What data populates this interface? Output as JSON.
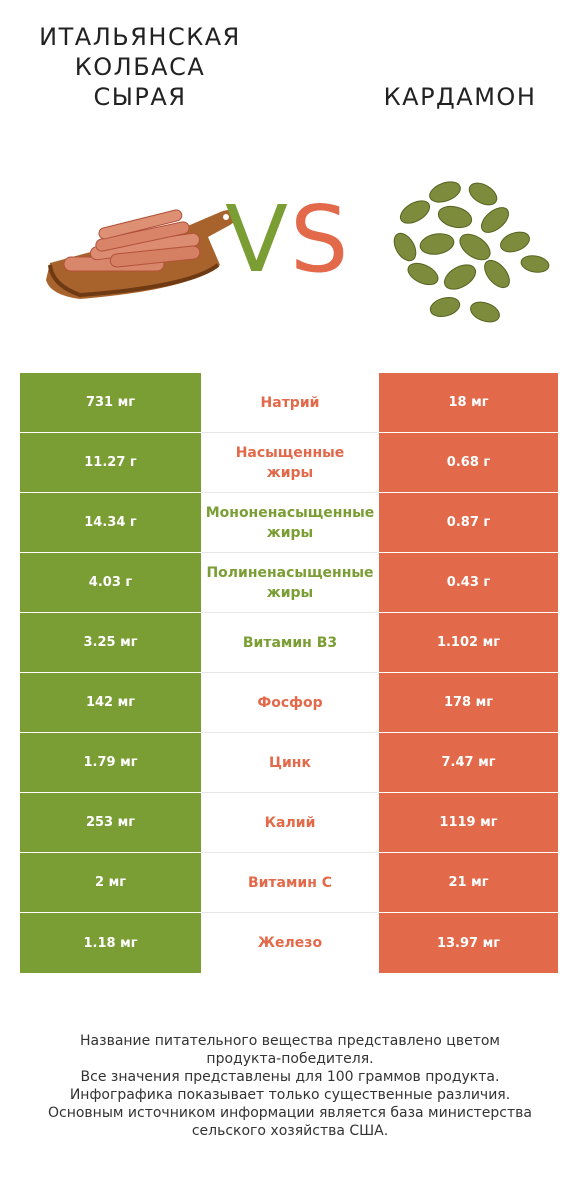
{
  "left_title": "ИТАЛЬЯНСКАЯ\nКОЛБАСА\nСЫРАЯ",
  "right_title": "КАРДАМОН",
  "vs": {
    "v": "V",
    "s": "S"
  },
  "colors": {
    "left": "#7a9e34",
    "right": "#e2694a"
  },
  "rows": [
    {
      "left": "731 мг",
      "nutrient": "Натрий",
      "right": "18 мг",
      "winner": "right"
    },
    {
      "left": "11.27 г",
      "nutrient": "Насыщенные\nжиры",
      "right": "0.68 г",
      "winner": "right"
    },
    {
      "left": "14.34 г",
      "nutrient": "Мононенасыщенные\nжиры",
      "right": "0.87 г",
      "winner": "left"
    },
    {
      "left": "4.03 г",
      "nutrient": "Полиненасыщенные\nжиры",
      "right": "0.43 г",
      "winner": "left"
    },
    {
      "left": "3.25 мг",
      "nutrient": "Витамин B3",
      "right": "1.102 мг",
      "winner": "left"
    },
    {
      "left": "142 мг",
      "nutrient": "Фосфор",
      "right": "178 мг",
      "winner": "right"
    },
    {
      "left": "1.79 мг",
      "nutrient": "Цинк",
      "right": "7.47 мг",
      "winner": "right"
    },
    {
      "left": "253 мг",
      "nutrient": "Калий",
      "right": "1119 мг",
      "winner": "right"
    },
    {
      "left": "2 мг",
      "nutrient": "Витамин C",
      "right": "21 мг",
      "winner": "right"
    },
    {
      "left": "1.18 мг",
      "nutrient": "Железо",
      "right": "13.97 мг",
      "winner": "right"
    }
  ],
  "footer": [
    "Название питательного вещества представлено цветом",
    "продукта-победителя.",
    "Все значения представлены для 100 граммов продукта.",
    "Инфографика показывает только существенные различия.",
    "Основным источником информации является база министерства",
    "сельского хозяйства США."
  ]
}
